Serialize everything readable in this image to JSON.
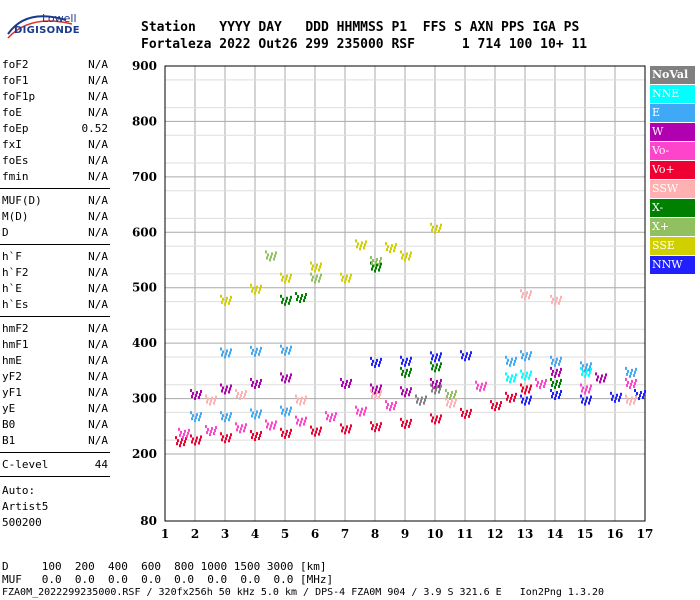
{
  "logo": {
    "line1": "Lowell",
    "line2": "DIGISONDE"
  },
  "header": {
    "line1": "Station   YYYY DAY   DDD HHMMSS P1  FFS S AXN PPS IGA PS",
    "line2": "Fortaleza 2022 Out26 299 235000 RSF      1 714 100 10+ 11"
  },
  "params": {
    "group1": [
      {
        "name": "foF2",
        "value": "N/A"
      },
      {
        "name": "foF1",
        "value": "N/A"
      },
      {
        "name": "foF1p",
        "value": "N/A"
      },
      {
        "name": "foE",
        "value": "N/A"
      },
      {
        "name": "foEp",
        "value": "0.52"
      },
      {
        "name": "fxI",
        "value": "N/A"
      },
      {
        "name": "foEs",
        "value": "N/A"
      },
      {
        "name": "fmin",
        "value": "N/A"
      }
    ],
    "group2": [
      {
        "name": "MUF(D)",
        "value": "N/A"
      },
      {
        "name": "M(D)",
        "value": "N/A"
      },
      {
        "name": "D",
        "value": "N/A"
      }
    ],
    "group3": [
      {
        "name": "h`F",
        "value": "N/A"
      },
      {
        "name": "h`F2",
        "value": "N/A"
      },
      {
        "name": "h`E",
        "value": "N/A"
      },
      {
        "name": "h`Es",
        "value": "N/A"
      }
    ],
    "group4": [
      {
        "name": "hmF2",
        "value": "N/A"
      },
      {
        "name": "hmF1",
        "value": "N/A"
      },
      {
        "name": "hmE",
        "value": "N/A"
      },
      {
        "name": "yF2",
        "value": "N/A"
      },
      {
        "name": "yF1",
        "value": "N/A"
      },
      {
        "name": "yE",
        "value": "N/A"
      },
      {
        "name": "B0",
        "value": "N/A"
      },
      {
        "name": "B1",
        "value": "N/A"
      }
    ],
    "clevel": {
      "name": "C-level",
      "value": "44"
    },
    "auto": [
      "Auto:",
      "Artist5",
      "500200"
    ]
  },
  "legend": [
    {
      "label": "NoVal",
      "color": "#808080"
    },
    {
      "label": "NNE",
      "color": "#00ffff"
    },
    {
      "label": "E",
      "color": "#3fa9f5"
    },
    {
      "label": "W",
      "color": "#b000b0"
    },
    {
      "label": "Vo-",
      "color": "#ff44cc"
    },
    {
      "label": "Vo+",
      "color": "#ee0033"
    },
    {
      "label": "SSW",
      "color": "#ffb0b0"
    },
    {
      "label": "X-",
      "color": "#008000"
    },
    {
      "label": "X+",
      "color": "#90c060"
    },
    {
      "label": "SSE",
      "color": "#d0d000"
    },
    {
      "label": "NNW",
      "color": "#2020ff"
    }
  ],
  "footer": {
    "d_row": "D     100  200  400  600  800 1000 1500 3000 [km]",
    "muf_row": "MUF   0.0  0.0  0.0  0.0  0.0  0.0  0.0  0.0 [MHz]",
    "info": "FZA0M_2022299235000.RSF / 320fx256h 50 kHz 5.0 km / DPS-4 FZA0M 904 / 3.9 S 321.6 E   Ion2Png 1.3.20"
  },
  "chart_data": {
    "type": "scatter",
    "title": "",
    "xlabel": "",
    "ylabel": "",
    "xlim": [
      1,
      17
    ],
    "ylim": [
      80,
      900
    ],
    "x_ticks": [
      1,
      2,
      3,
      4,
      5,
      6,
      7,
      8,
      9,
      10,
      11,
      12,
      13,
      14,
      15,
      16,
      17
    ],
    "y_ticks": [
      80,
      200,
      300,
      400,
      500,
      600,
      700,
      800,
      900
    ],
    "grid": true,
    "legend_position": "right",
    "series": [
      {
        "name": "Vo+",
        "color": "#ee0033",
        "points": [
          [
            1.5,
            225
          ],
          [
            2.0,
            228
          ],
          [
            3.0,
            232
          ],
          [
            4.0,
            236
          ],
          [
            5.0,
            240
          ],
          [
            6.0,
            244
          ],
          [
            7.0,
            248
          ],
          [
            8.0,
            252
          ],
          [
            9.0,
            258
          ],
          [
            10.0,
            266
          ],
          [
            11.0,
            276
          ],
          [
            12.0,
            290
          ],
          [
            12.5,
            305
          ],
          [
            13.0,
            320
          ]
        ]
      },
      {
        "name": "Vo-",
        "color": "#ff44cc",
        "points": [
          [
            1.6,
            240
          ],
          [
            2.5,
            245
          ],
          [
            3.5,
            250
          ],
          [
            4.5,
            255
          ],
          [
            5.5,
            262
          ],
          [
            6.5,
            270
          ],
          [
            7.5,
            280
          ],
          [
            8.5,
            290
          ],
          [
            9.5,
            300
          ],
          [
            10.5,
            310
          ],
          [
            11.5,
            325
          ],
          [
            13.5,
            330
          ],
          [
            15.0,
            320
          ],
          [
            16.5,
            330
          ]
        ]
      },
      {
        "name": "E",
        "color": "#3fa9f5",
        "points": [
          [
            2.0,
            270
          ],
          [
            3.0,
            270
          ],
          [
            4.0,
            275
          ],
          [
            5.0,
            280
          ],
          [
            3.0,
            385
          ],
          [
            4.0,
            388
          ],
          [
            5.0,
            390
          ],
          [
            12.5,
            370
          ],
          [
            13.0,
            380
          ],
          [
            14.0,
            370
          ],
          [
            15.0,
            360
          ],
          [
            16.5,
            350
          ]
        ]
      },
      {
        "name": "NNW",
        "color": "#2020ff",
        "points": [
          [
            8.0,
            368
          ],
          [
            9.0,
            370
          ],
          [
            10.0,
            378
          ],
          [
            11.0,
            380
          ],
          [
            13.0,
            300
          ],
          [
            14.0,
            310
          ],
          [
            15.0,
            300
          ],
          [
            16.0,
            305
          ],
          [
            16.8,
            310
          ]
        ]
      },
      {
        "name": "W",
        "color": "#b000b0",
        "points": [
          [
            2.0,
            310
          ],
          [
            3.0,
            320
          ],
          [
            4.0,
            330
          ],
          [
            5.0,
            340
          ],
          [
            7.0,
            330
          ],
          [
            8.0,
            320
          ],
          [
            9.0,
            315
          ],
          [
            10.0,
            330
          ],
          [
            14.0,
            350
          ],
          [
            15.5,
            340
          ]
        ]
      },
      {
        "name": "SSE",
        "color": "#d0d000",
        "points": [
          [
            3.0,
            480
          ],
          [
            4.0,
            500
          ],
          [
            5.0,
            520
          ],
          [
            6.0,
            540
          ],
          [
            7.0,
            520
          ],
          [
            8.0,
            540
          ],
          [
            9.0,
            560
          ],
          [
            10.0,
            610
          ],
          [
            7.5,
            580
          ],
          [
            8.5,
            575
          ]
        ]
      },
      {
        "name": "X-",
        "color": "#008000",
        "points": [
          [
            5.0,
            480
          ],
          [
            5.5,
            485
          ],
          [
            8.0,
            540
          ],
          [
            9.0,
            350
          ],
          [
            10.0,
            360
          ],
          [
            14.0,
            330
          ]
        ]
      },
      {
        "name": "SSW",
        "color": "#ffb0b0",
        "points": [
          [
            2.5,
            300
          ],
          [
            3.5,
            310
          ],
          [
            5.5,
            300
          ],
          [
            8.0,
            310
          ],
          [
            10.5,
            295
          ],
          [
            13.0,
            490
          ],
          [
            14.0,
            480
          ],
          [
            16.5,
            300
          ]
        ]
      },
      {
        "name": "NNE",
        "color": "#00ffff",
        "points": [
          [
            12.5,
            340
          ],
          [
            13.0,
            345
          ],
          [
            15.0,
            350
          ]
        ]
      },
      {
        "name": "X+",
        "color": "#90c060",
        "points": [
          [
            4.5,
            560
          ],
          [
            6.0,
            520
          ],
          [
            8.0,
            550
          ],
          [
            10.5,
            310
          ]
        ]
      },
      {
        "name": "NoVal",
        "color": "#808080",
        "points": [
          [
            9.5,
            300
          ],
          [
            10.0,
            320
          ]
        ]
      }
    ]
  }
}
